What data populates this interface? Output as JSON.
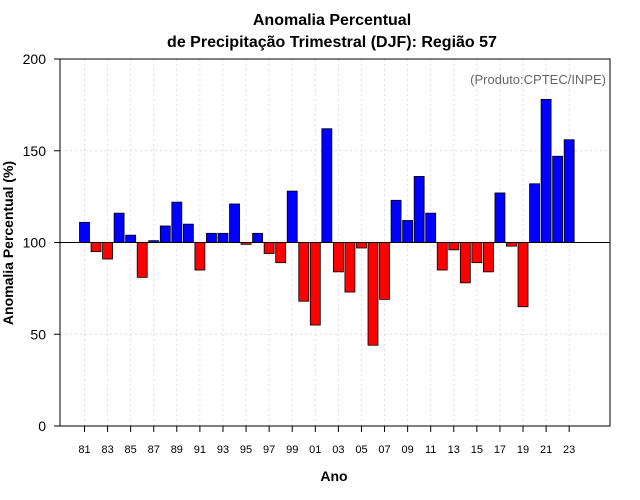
{
  "chart_data": {
    "type": "bar",
    "title_line1": "Anomalia Percentual",
    "title_line2": "de Precipitação Trimestral (DJF): Região 57",
    "xlabel": "Ano",
    "ylabel": "Anomalia Percentual (%)",
    "credit": "(Produto:CPTEC/INPE)",
    "ylim": [
      0,
      200
    ],
    "yticks": [
      "0",
      "50",
      "100",
      "150",
      "200"
    ],
    "baseline": 100,
    "colors": {
      "above": "#0000ff",
      "below": "#ff0000",
      "edge": "#000000",
      "grid": "#dddddd"
    },
    "categories": [
      "81",
      "82",
      "83",
      "84",
      "85",
      "86",
      "87",
      "88",
      "89",
      "90",
      "91",
      "92",
      "93",
      "94",
      "95",
      "96",
      "97",
      "98",
      "99",
      "00",
      "01",
      "02",
      "03",
      "04",
      "05",
      "06",
      "07",
      "08",
      "09",
      "10",
      "11",
      "12",
      "13",
      "14",
      "15",
      "16",
      "17",
      "18",
      "19",
      "20",
      "21",
      "22",
      "23"
    ],
    "xtick_labels": [
      "81",
      "83",
      "85",
      "87",
      "89",
      "91",
      "93",
      "95",
      "97",
      "99",
      "01",
      "03",
      "05",
      "07",
      "09",
      "11",
      "13",
      "15",
      "17",
      "19",
      "21",
      "23"
    ],
    "values": [
      111,
      95,
      91,
      116,
      104,
      81,
      101,
      109,
      122,
      110,
      85,
      105,
      105,
      121,
      99,
      105,
      94,
      89,
      128,
      68,
      55,
      162,
      84,
      73,
      97,
      44,
      69,
      123,
      112,
      136,
      116,
      85,
      96,
      78,
      89,
      84,
      127,
      98,
      65,
      132,
      178,
      147,
      156
    ]
  }
}
